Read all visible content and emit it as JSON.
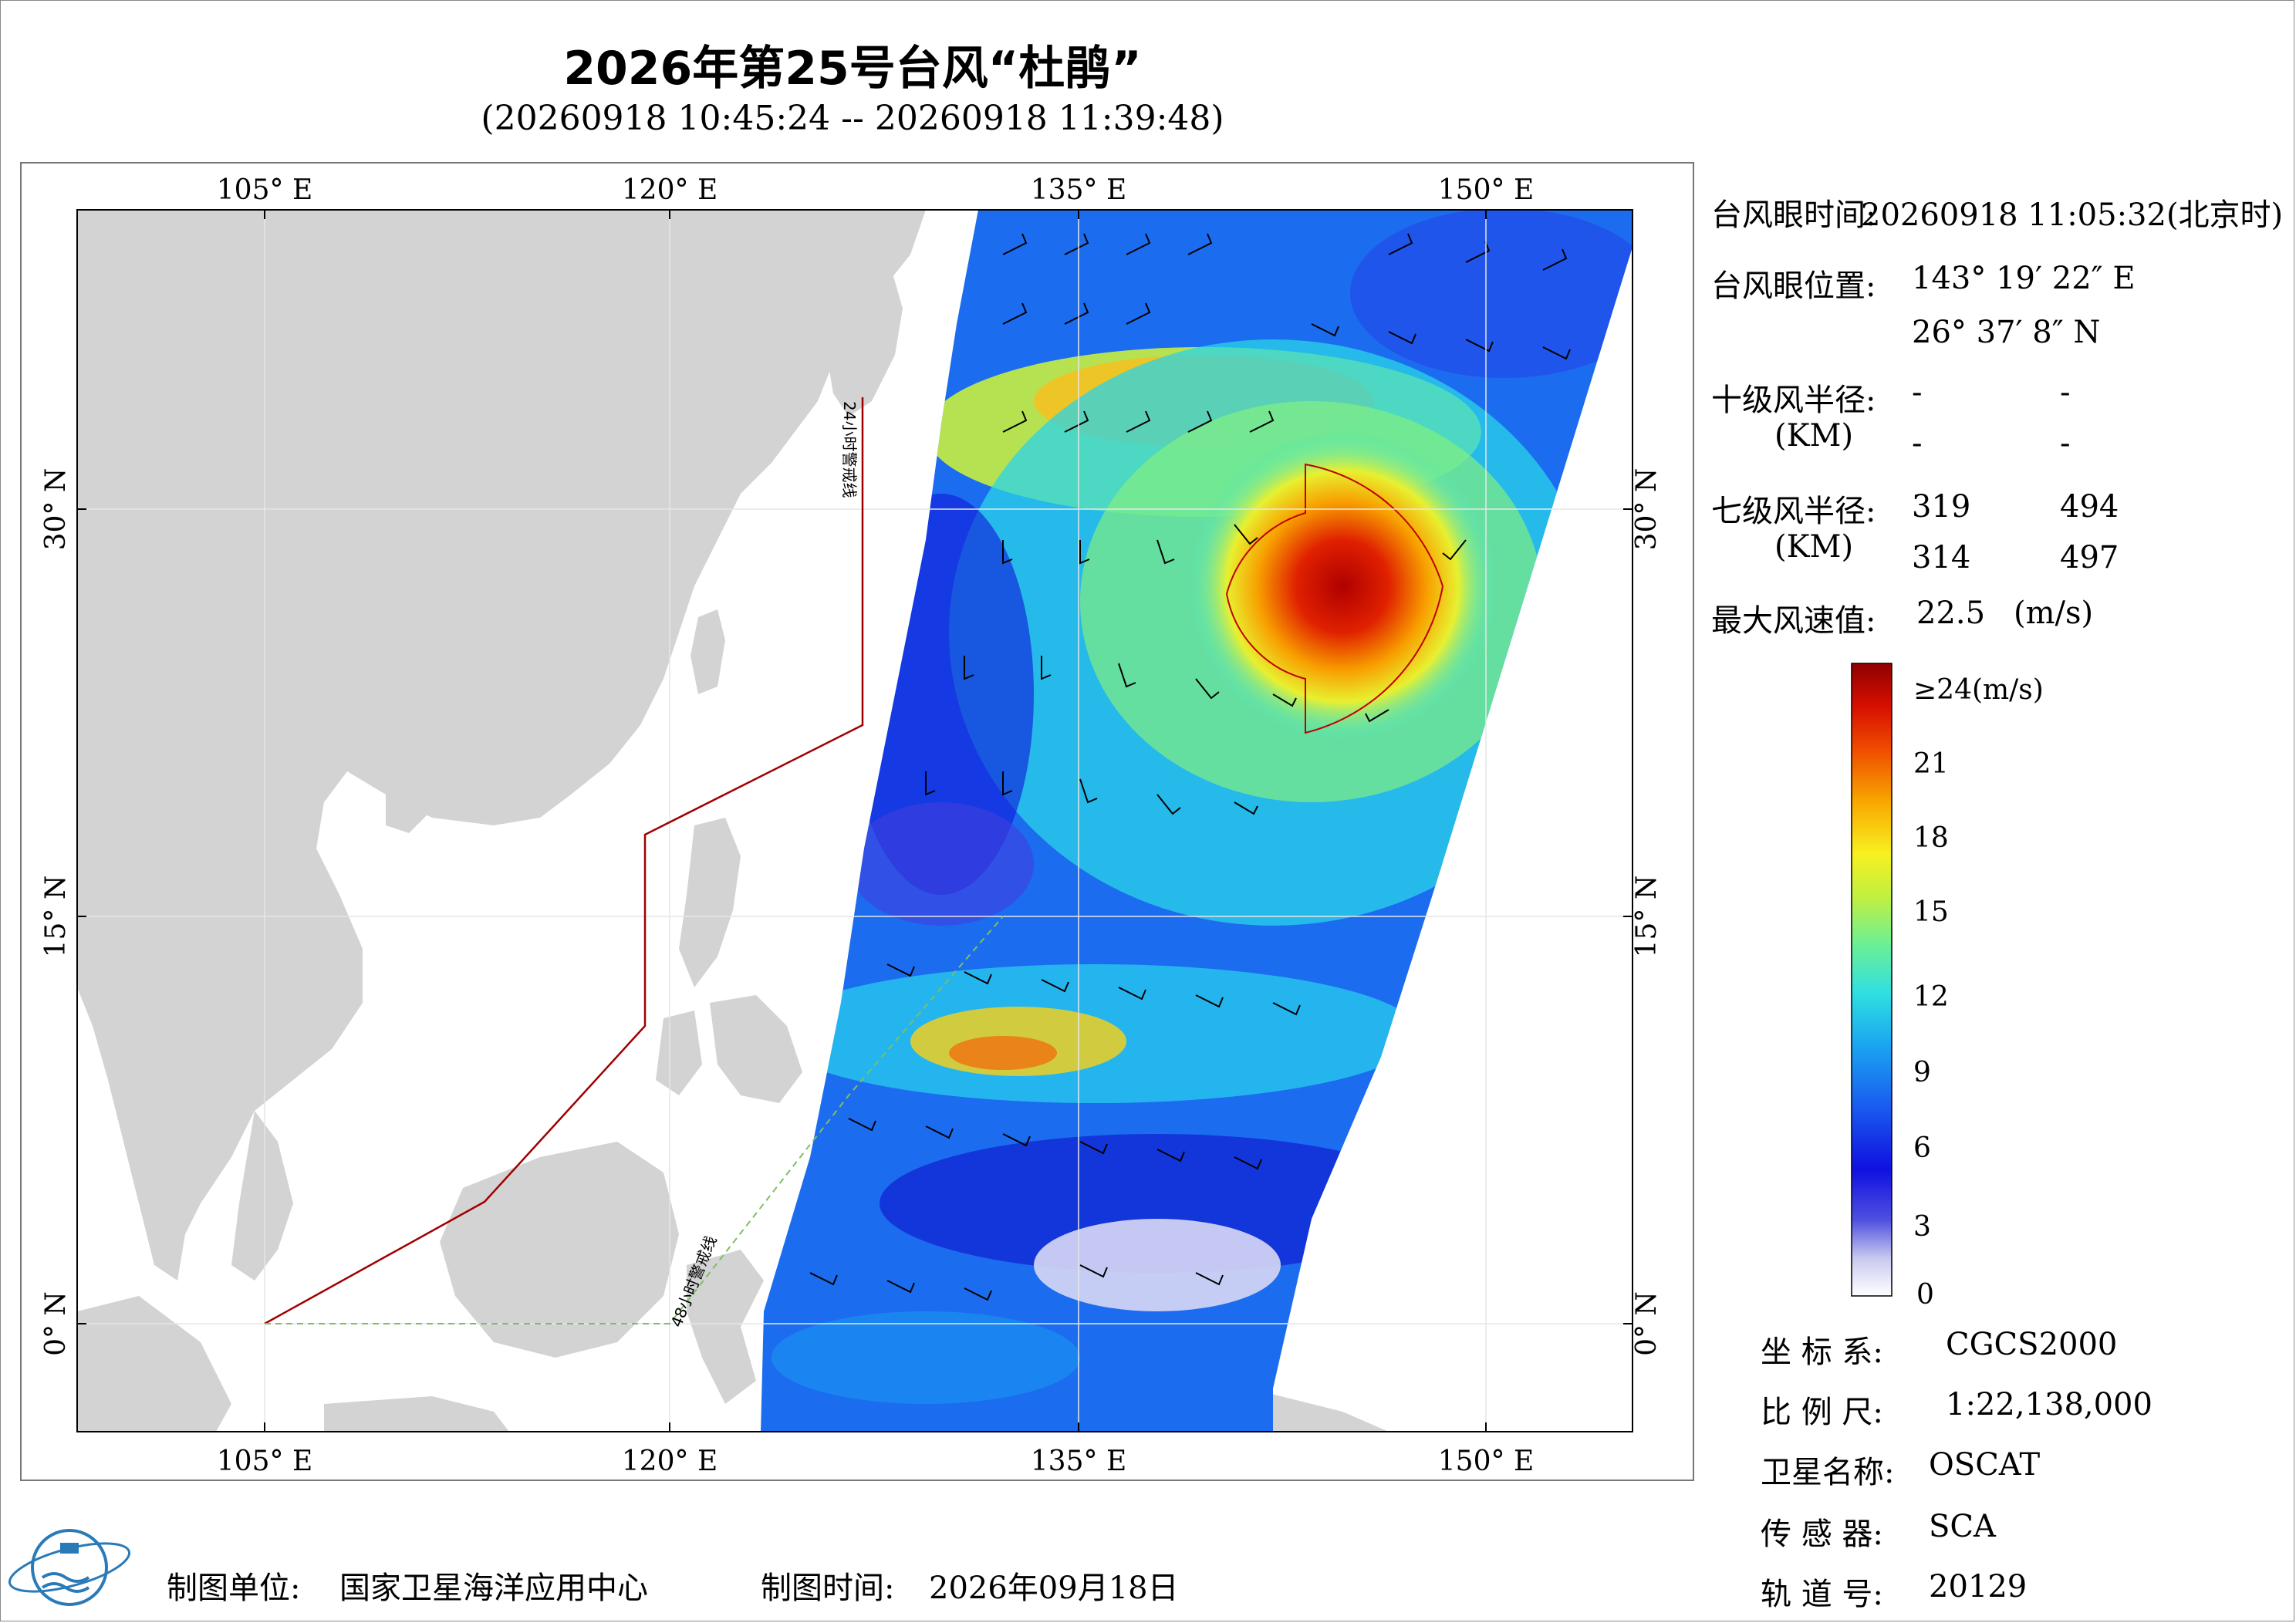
{
  "title": "2026年第25号台风“杜鹃”",
  "subtitle": "(20260918 10:45:24 -- 20260918 11:39:48)",
  "map": {
    "lon_labels": [
      "105° E",
      "120° E",
      "135° E",
      "150° E"
    ],
    "lat_labels": [
      "30° N",
      "15° N",
      "0° N"
    ],
    "warn24_label": "24小时警戒线",
    "warn48_label": "48小时警戒线"
  },
  "info": {
    "eye_time_label": "台风眼时间:",
    "eye_time_value": "20260918 11:05:32(北京时)",
    "eye_pos_label": "台风眼位置:",
    "eye_lon": "143° 19′ 22″ E",
    "eye_lat": "26° 37′ 8″ N",
    "r10_label": "十级风半径:",
    "r10_unit": "(KM)",
    "r10_values": [
      "-",
      "-",
      "-",
      "-"
    ],
    "r7_label": "七级风半径:",
    "r7_unit": "(KM)",
    "r7_values": [
      "319",
      "494",
      "314",
      "497"
    ],
    "max_wind_label": "最大风速值:",
    "max_wind_value": "22.5",
    "max_wind_unit": "(m/s)"
  },
  "colorbar": {
    "ticks": [
      "≥24(m/s)",
      "21",
      "18",
      "15",
      "12",
      "9",
      "6",
      "3",
      "0"
    ],
    "colors": [
      "#ffffff",
      "#c8c8f0",
      "#7070e0",
      "#1010e0",
      "#1a5cf0",
      "#1aa0f0",
      "#20d8e8",
      "#60f0a0",
      "#b0f040",
      "#f0f020",
      "#f8b000",
      "#f06000",
      "#e01000",
      "#a00000"
    ]
  },
  "meta": {
    "crs_label": "坐 标 系:",
    "crs_value": "CGCS2000",
    "scale_label": "比 例 尺:",
    "scale_value": "1:22,138,000",
    "sat_label": "卫星名称:",
    "sat_value": "OSCAT",
    "sensor_label": "传 感 器:",
    "sensor_value": "SCA",
    "orbit_label": "轨 道 号:",
    "orbit_value": "20129"
  },
  "footer": {
    "org_label": "制图单位:",
    "org_value": "国家卫星海洋应用中心",
    "date_label": "制图时间:",
    "date_value": "2026年09月18日"
  }
}
